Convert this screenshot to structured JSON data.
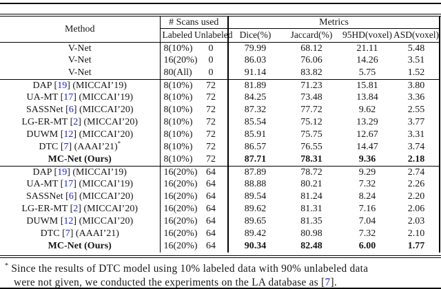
{
  "colors": {
    "background": "#ffffff",
    "text": "#151515",
    "rule": "#000000",
    "cite": "#1b1bd8"
  },
  "table": {
    "star_symbol": "*",
    "header": {
      "method": "Method",
      "scans_group": "# Scans used",
      "metrics_group": "Metrics",
      "subheaders": [
        "Labeled",
        "Unlabeled",
        "Dice(%)",
        "Jaccard(%)",
        "95HD(voxel)",
        "ASD(voxel)"
      ]
    },
    "sections": [
      {
        "rows": [
          {
            "method": {
              "name": "V-Net",
              "cite": null,
              "venue": null,
              "star": false,
              "bold": false
            },
            "labeled": "8(10%)",
            "unlabeled": "0",
            "dice": "79.99",
            "jaccard": "68.12",
            "hd95": "21.11",
            "asd": "5.48",
            "bold_metrics": false
          },
          {
            "method": {
              "name": "V-Net",
              "cite": null,
              "venue": null,
              "star": false,
              "bold": false
            },
            "labeled": "16(20%)",
            "unlabeled": "0",
            "dice": "86.03",
            "jaccard": "76.06",
            "hd95": "14.26",
            "asd": "3.51",
            "bold_metrics": false
          },
          {
            "method": {
              "name": "V-Net",
              "cite": null,
              "venue": null,
              "star": false,
              "bold": false
            },
            "labeled": "80(All)",
            "unlabeled": "0",
            "dice": "91.14",
            "jaccard": "83.82",
            "hd95": "5.75",
            "asd": "1.52",
            "bold_metrics": false
          }
        ]
      },
      {
        "rows": [
          {
            "method": {
              "name": "DAP",
              "cite": "19",
              "venue": "(MICCAI’19)",
              "star": false,
              "bold": false
            },
            "labeled": "8(10%)",
            "unlabeled": "72",
            "dice": "81.89",
            "jaccard": "71.23",
            "hd95": "15.81",
            "asd": "3.80",
            "bold_metrics": false
          },
          {
            "method": {
              "name": "UA-MT",
              "cite": "17",
              "venue": "(MICCAI’19)",
              "star": false,
              "bold": false
            },
            "labeled": "8(10%)",
            "unlabeled": "72",
            "dice": "84.25",
            "jaccard": "73.48",
            "hd95": "13.84",
            "asd": "3.36",
            "bold_metrics": false
          },
          {
            "method": {
              "name": "SASSNet",
              "cite": "6",
              "venue": "(MICCAI’20)",
              "star": false,
              "bold": false
            },
            "labeled": "8(10%)",
            "unlabeled": "72",
            "dice": "87.32",
            "jaccard": "77.72",
            "hd95": "9.62",
            "asd": "2.55",
            "bold_metrics": false
          },
          {
            "method": {
              "name": "LG-ER-MT",
              "cite": "2",
              "venue": "(MICCAI’20)",
              "star": false,
              "bold": false
            },
            "labeled": "8(10%)",
            "unlabeled": "72",
            "dice": "85.54",
            "jaccard": "75.12",
            "hd95": "13.29",
            "asd": "3.77",
            "bold_metrics": false
          },
          {
            "method": {
              "name": "DUWM",
              "cite": "12",
              "venue": "(MICCAI’20)",
              "star": false,
              "bold": false
            },
            "labeled": "8(10%)",
            "unlabeled": "72",
            "dice": "85.91",
            "jaccard": "75.75",
            "hd95": "12.67",
            "asd": "3.31",
            "bold_metrics": false
          },
          {
            "method": {
              "name": "DTC",
              "cite": "7",
              "venue": "(AAAI’21)",
              "star": true,
              "bold": false
            },
            "labeled": "8(10%)",
            "unlabeled": "72",
            "dice": "86.57",
            "jaccard": "76.55",
            "hd95": "14.47",
            "asd": "3.74",
            "bold_metrics": false
          },
          {
            "method": {
              "name": "MC-Net (Ours)",
              "cite": null,
              "venue": null,
              "star": false,
              "bold": true
            },
            "labeled": "8(10%)",
            "unlabeled": "72",
            "dice": "87.71",
            "jaccard": "78.31",
            "hd95": "9.36",
            "asd": "2.18",
            "bold_metrics": true
          }
        ]
      },
      {
        "rows": [
          {
            "method": {
              "name": "DAP",
              "cite": "19",
              "venue": "(MICCAI’19)",
              "star": false,
              "bold": false
            },
            "labeled": "16(20%)",
            "unlabeled": "64",
            "dice": "87.89",
            "jaccard": "78.72",
            "hd95": "9.29",
            "asd": "2.74",
            "bold_metrics": false
          },
          {
            "method": {
              "name": "UA-MT",
              "cite": "17",
              "venue": "(MICCAI’19)",
              "star": false,
              "bold": false
            },
            "labeled": "16(20%)",
            "unlabeled": "64",
            "dice": "88.88",
            "jaccard": "80.21",
            "hd95": "7.32",
            "asd": "2.26",
            "bold_metrics": false
          },
          {
            "method": {
              "name": "SASSNet",
              "cite": "6",
              "venue": "(MICCAI’20)",
              "star": false,
              "bold": false
            },
            "labeled": "16(20%)",
            "unlabeled": "64",
            "dice": "89.54",
            "jaccard": "81.24",
            "hd95": "8.24",
            "asd": "2.20",
            "bold_metrics": false
          },
          {
            "method": {
              "name": "LG-ER-MT",
              "cite": "2",
              "venue": "(MICCAI’20)",
              "star": false,
              "bold": false
            },
            "labeled": "16(20%)",
            "unlabeled": "64",
            "dice": "89.62",
            "jaccard": "81.31",
            "hd95": "7.16",
            "asd": "2.06",
            "bold_metrics": false
          },
          {
            "method": {
              "name": "DUWM",
              "cite": "12",
              "venue": "(MICCAI’20)",
              "star": false,
              "bold": false
            },
            "labeled": "16(20%)",
            "unlabeled": "64",
            "dice": "89.65",
            "jaccard": "81.35",
            "hd95": "7.04",
            "asd": "2.03",
            "bold_metrics": false
          },
          {
            "method": {
              "name": "DTC",
              "cite": "7",
              "venue": "(AAAI’21)",
              "star": false,
              "bold": false
            },
            "labeled": "16(20%)",
            "unlabeled": "64",
            "dice": "89.42",
            "jaccard": "80.98",
            "hd95": "7.32",
            "asd": "2.10",
            "bold_metrics": false
          },
          {
            "method": {
              "name": "MC-Net (Ours)",
              "cite": null,
              "venue": null,
              "star": false,
              "bold": true
            },
            "labeled": "16(20%)",
            "unlabeled": "64",
            "dice": "90.34",
            "jaccard": "82.48",
            "hd95": "6.00",
            "asd": "1.77",
            "bold_metrics": true
          }
        ]
      }
    ]
  },
  "footnote": {
    "marker": "*",
    "line1": "Since the results of DTC model using 10% labeled data with 90% unlabeled data",
    "line2_prefix": "were not given, we conducted the experiments on the LA database as [",
    "line2_cite": "7",
    "line2_suffix": "]."
  }
}
